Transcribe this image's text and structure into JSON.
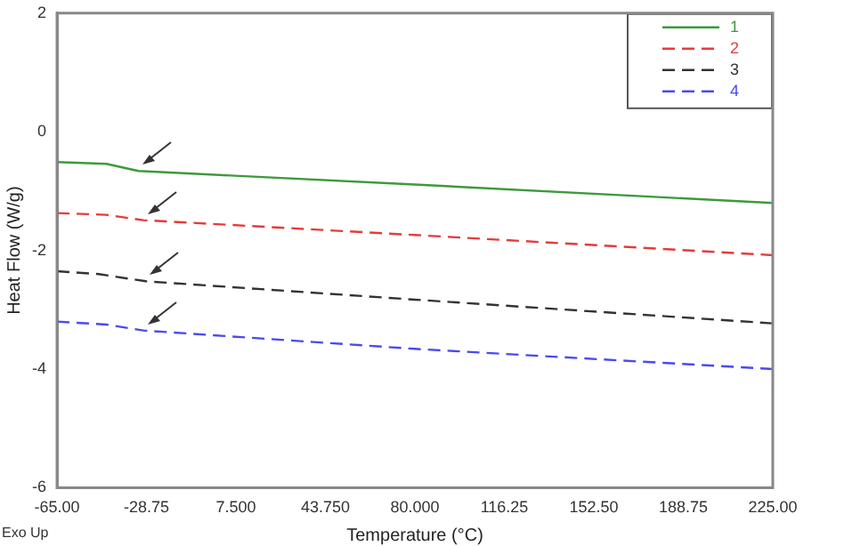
{
  "chart_data": {
    "type": "line",
    "xlabel": "Temperature (°C)",
    "ylabel": "Heat Flow (W/g)",
    "annotations": [
      "Exo Up"
    ],
    "xlim": [
      -65,
      225
    ],
    "xticks": [
      {
        "value": -65,
        "label": "-65.00"
      },
      {
        "value": -28.75,
        "label": "-28.75"
      },
      {
        "value": 7.5,
        "label": "7.500"
      },
      {
        "value": 43.75,
        "label": "43.750"
      },
      {
        "value": 80,
        "label": "80.000"
      },
      {
        "value": 116.25,
        "label": "116.25"
      },
      {
        "value": 152.5,
        "label": "152.50"
      },
      {
        "value": 188.75,
        "label": "188.75"
      },
      {
        "value": 225,
        "label": "225.00"
      }
    ],
    "ylim": [
      -6,
      2
    ],
    "yticks": [
      -6,
      -4,
      -2,
      0,
      2
    ],
    "grid": false,
    "legend": "top right",
    "marker": "none",
    "series": [
      {
        "name": "1",
        "color": "#3c9a3c",
        "line_style": "solid",
        "x": [
          -65,
          -45,
          -32,
          80,
          225
        ],
        "values": [
          -0.51,
          -0.54,
          -0.66,
          -0.89,
          -1.2
        ]
      },
      {
        "name": "2",
        "color": "#e53b3b",
        "line_style": "dashed",
        "x": [
          -65,
          -45,
          -30,
          80,
          225
        ],
        "values": [
          -1.37,
          -1.4,
          -1.49,
          -1.74,
          -2.08
        ]
      },
      {
        "name": "3",
        "color": "#333333",
        "line_style": "dashed",
        "x": [
          -65,
          -48,
          -29,
          80,
          225
        ],
        "values": [
          -2.35,
          -2.4,
          -2.52,
          -2.83,
          -3.23
        ]
      },
      {
        "name": "4",
        "color": "#4a4af0",
        "line_style": "dashed",
        "x": [
          -65,
          -45,
          -30,
          80,
          225
        ],
        "values": [
          -3.2,
          -3.25,
          -3.35,
          -3.66,
          -4.0
        ]
      }
    ]
  }
}
